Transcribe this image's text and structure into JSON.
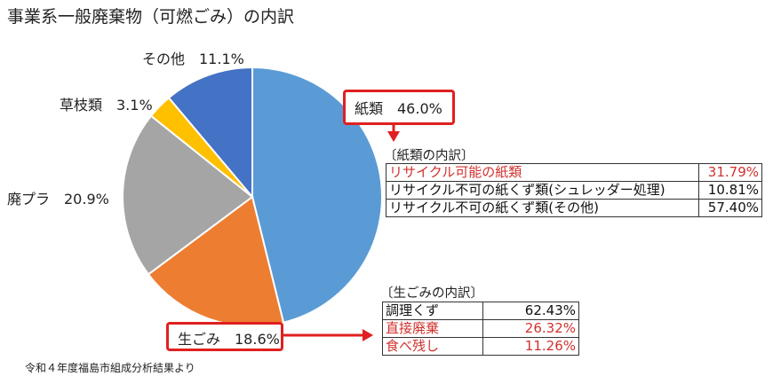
{
  "title": "事業系一般廃棄物（可燃ごみ）の内訳",
  "source_note": "令和４年度福島市組成分析結果より",
  "chart_data": {
    "type": "pie",
    "title": "事業系一般廃棄物（可燃ごみ）の内訳",
    "start": "12 o'clock, clockwise",
    "slices": [
      {
        "label": "紙類",
        "display": "紙類　46.0%",
        "value": 46.0,
        "color": "#5b9bd5"
      },
      {
        "label": "生ごみ",
        "display": "生ごみ　18.6%",
        "value": 18.6,
        "color": "#ed7d31"
      },
      {
        "label": "廃プラ",
        "display": "廃プラ　20.9%",
        "value": 20.9,
        "color": "#a5a5a5"
      },
      {
        "label": "草枝類",
        "display": "草枝類　3.1%",
        "value": 3.1,
        "color": "#ffc000"
      },
      {
        "label": "その他",
        "display": "その他　11.1%",
        "value": 11.1,
        "color": "#4472c4"
      }
    ],
    "paper_breakdown": {
      "title": "〔紙類の内訳〕",
      "rows": [
        {
          "label": "リサイクル可能の紙類",
          "value": "31.79%",
          "highlight": true
        },
        {
          "label": "リサイクル不可の紙くず類(シュレッダー処理)",
          "value": "10.81%",
          "highlight": false
        },
        {
          "label": "リサイクル不可の紙くず類(その他)",
          "value": "57.40%",
          "highlight": false
        }
      ]
    },
    "food_breakdown": {
      "title": "〔生ごみの内訳〕",
      "rows": [
        {
          "label": "調理くず",
          "value": "62.43%",
          "highlight": false
        },
        {
          "label": "直接廃棄",
          "value": "26.32%",
          "highlight": true
        },
        {
          "label": "食べ残し",
          "value": "11.26%",
          "highlight": true
        }
      ]
    }
  },
  "colors": {
    "highlight_border": "#e02020",
    "highlight_text": "#d0312d"
  }
}
